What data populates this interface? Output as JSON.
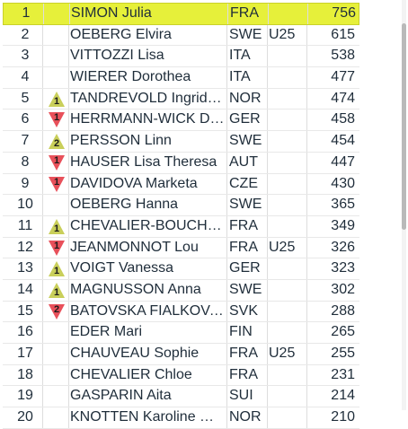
{
  "colors": {
    "highlight": "#e6f03a",
    "up": "#c9cf5a",
    "down": "#e8505a"
  },
  "rows": [
    {
      "rank": "1",
      "trend": "",
      "trend_dir": "",
      "name": "SIMON Julia",
      "nat": "FRA",
      "cat": "",
      "pts": "756",
      "highlight": true
    },
    {
      "rank": "2",
      "trend": "",
      "trend_dir": "",
      "name": "OEBERG Elvira",
      "nat": "SWE",
      "cat": "U25",
      "pts": "615"
    },
    {
      "rank": "3",
      "trend": "",
      "trend_dir": "",
      "name": "VITTOZZI Lisa",
      "nat": "ITA",
      "cat": "",
      "pts": "538"
    },
    {
      "rank": "4",
      "trend": "",
      "trend_dir": "",
      "name": "WIERER Dorothea",
      "nat": "ITA",
      "cat": "",
      "pts": "477"
    },
    {
      "rank": "5",
      "trend": "1",
      "trend_dir": "up",
      "name": "TANDREVOLD Ingrid L...",
      "nat": "NOR",
      "cat": "",
      "pts": "474"
    },
    {
      "rank": "6",
      "trend": "1",
      "trend_dir": "down",
      "name": "HERRMANN-WICK De...",
      "nat": "GER",
      "cat": "",
      "pts": "458"
    },
    {
      "rank": "7",
      "trend": "2",
      "trend_dir": "up",
      "name": "PERSSON Linn",
      "nat": "SWE",
      "cat": "",
      "pts": "454"
    },
    {
      "rank": "8",
      "trend": "1",
      "trend_dir": "down",
      "name": "HAUSER Lisa Theresa",
      "nat": "AUT",
      "cat": "",
      "pts": "447"
    },
    {
      "rank": "9",
      "trend": "1",
      "trend_dir": "down",
      "name": "DAVIDOVA Marketa",
      "nat": "CZE",
      "cat": "",
      "pts": "430"
    },
    {
      "rank": "10",
      "trend": "",
      "trend_dir": "",
      "name": "OEBERG Hanna",
      "nat": "SWE",
      "cat": "",
      "pts": "365"
    },
    {
      "rank": "11",
      "trend": "1",
      "trend_dir": "up",
      "name": "CHEVALIER-BOUCHET ...",
      "nat": "FRA",
      "cat": "",
      "pts": "349"
    },
    {
      "rank": "12",
      "trend": "1",
      "trend_dir": "down",
      "name": "JEANMONNOT Lou",
      "nat": "FRA",
      "cat": "U25",
      "pts": "326"
    },
    {
      "rank": "13",
      "trend": "1",
      "trend_dir": "up",
      "name": "VOIGT Vanessa",
      "nat": "GER",
      "cat": "",
      "pts": "323"
    },
    {
      "rank": "14",
      "trend": "1",
      "trend_dir": "up",
      "name": "MAGNUSSON Anna",
      "nat": "SWE",
      "cat": "",
      "pts": "302"
    },
    {
      "rank": "15",
      "trend": "2",
      "trend_dir": "down",
      "name": "BATOVSKA FIALKOVA ...",
      "nat": "SVK",
      "cat": "",
      "pts": "288"
    },
    {
      "rank": "16",
      "trend": "",
      "trend_dir": "",
      "name": "EDER Mari",
      "nat": "FIN",
      "cat": "",
      "pts": "265"
    },
    {
      "rank": "17",
      "trend": "",
      "trend_dir": "",
      "name": "CHAUVEAU Sophie",
      "nat": "FRA",
      "cat": "U25",
      "pts": "255"
    },
    {
      "rank": "18",
      "trend": "",
      "trend_dir": "",
      "name": "CHEVALIER Chloe",
      "nat": "FRA",
      "cat": "",
      "pts": "231"
    },
    {
      "rank": "19",
      "trend": "",
      "trend_dir": "",
      "name": "GASPARIN Aita",
      "nat": "SUI",
      "cat": "",
      "pts": "214"
    },
    {
      "rank": "20",
      "trend": "",
      "trend_dir": "",
      "name": "KNOTTEN Karoline Off...",
      "nat": "NOR",
      "cat": "",
      "pts": "210"
    }
  ]
}
